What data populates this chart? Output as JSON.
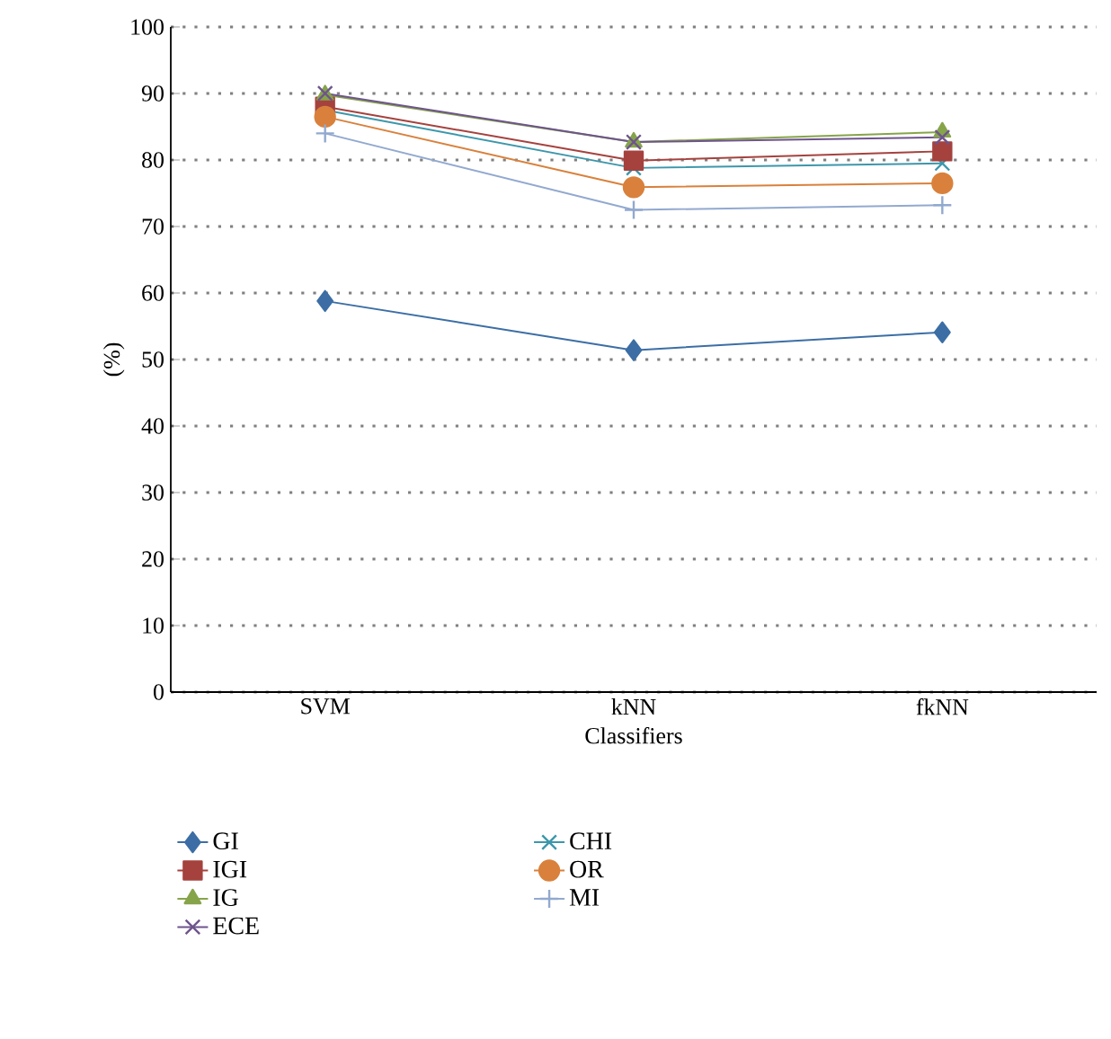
{
  "chart_data": {
    "type": "line",
    "xlabel": "Classifiers",
    "ylabel": "(%)",
    "categories": [
      "SVM",
      "kNN",
      "fkNN"
    ],
    "ylim": [
      0,
      100
    ],
    "yticks": [
      0,
      10,
      20,
      30,
      40,
      50,
      60,
      70,
      80,
      90,
      100
    ],
    "grid": "y",
    "legend": "bottom",
    "line_style": "solid",
    "series": [
      {
        "name": "GI",
        "color": "#3c6ea5",
        "marker": "diamond",
        "values": [
          58.8,
          51.4,
          54.1
        ]
      },
      {
        "name": "CHI",
        "color": "#3d97ab",
        "marker": "cross",
        "values": [
          87.5,
          78.8,
          79.5
        ]
      },
      {
        "name": "IGI",
        "color": "#a5423e",
        "marker": "square",
        "values": [
          88,
          79.9,
          81.3
        ]
      },
      {
        "name": "OR",
        "color": "#d9813c",
        "marker": "circle",
        "values": [
          86.5,
          75.9,
          76.5
        ]
      },
      {
        "name": "IG",
        "color": "#86a44a",
        "marker": "triangle",
        "values": [
          89.8,
          82.7,
          84.2
        ]
      },
      {
        "name": "MI",
        "color": "#92a9cf",
        "marker": "plus",
        "values": [
          84,
          72.5,
          73.2
        ]
      },
      {
        "name": "ECE",
        "color": "#6e548d",
        "marker": "cross",
        "values": [
          90,
          82.7,
          83.4
        ]
      }
    ]
  }
}
